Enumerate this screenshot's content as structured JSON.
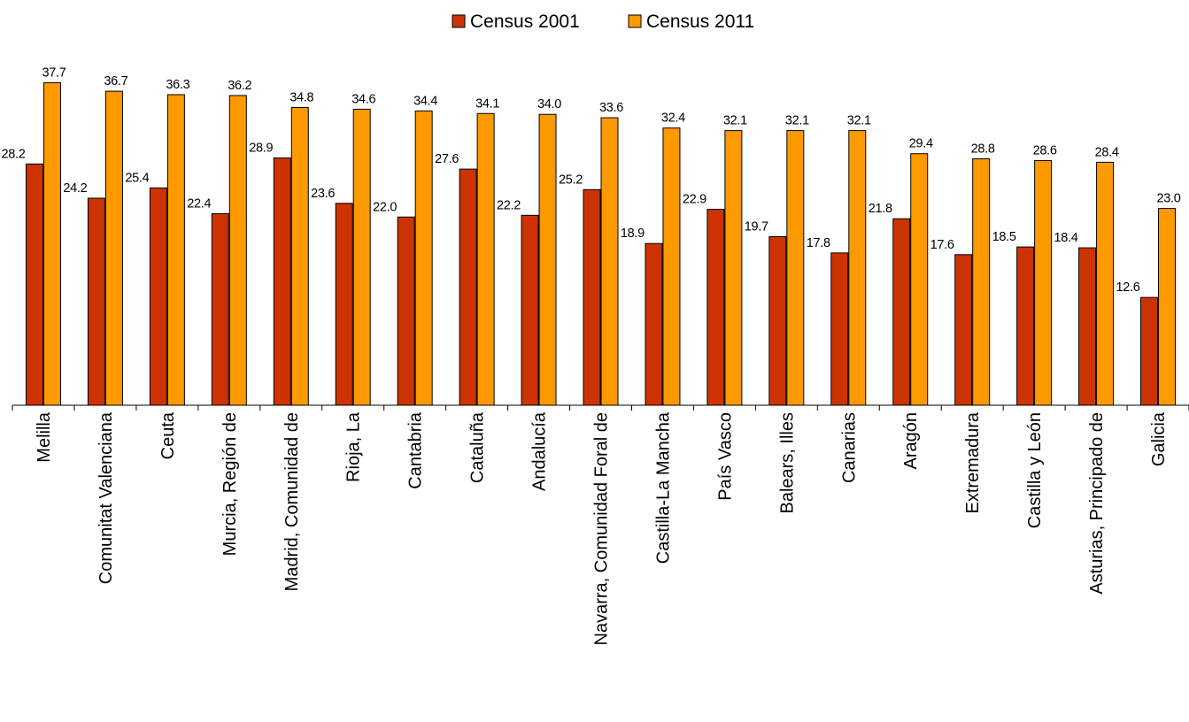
{
  "chart_data": {
    "type": "bar",
    "title": "",
    "xlabel": "",
    "ylabel": "",
    "ylim": [
      0,
      40
    ],
    "grid": false,
    "legend_placement": "top-center",
    "categories": [
      "Melilla",
      "Comunitat Valenciana",
      "Ceuta",
      "Murcia,  Región de",
      "Madrid, Comunidad de",
      "Rioja, La",
      "Cantabria",
      "Cataluña",
      "Andalucía",
      "Navarra, Comunidad Foral de",
      "Castilla-La Mancha",
      "País Vasco",
      "Balears,  Illes",
      "Canarias",
      "Aragón",
      "Extremadura",
      "Castilla y León",
      "Asturias,  Principado de",
      "Galicia"
    ],
    "series": [
      {
        "name": "Census 2001",
        "color": "#CC3300",
        "values": [
          28.2,
          24.2,
          25.4,
          22.4,
          28.9,
          23.6,
          22.0,
          27.6,
          22.2,
          25.2,
          18.9,
          22.9,
          19.7,
          17.8,
          21.8,
          17.6,
          18.5,
          18.4,
          12.6
        ],
        "labels": [
          "28.2",
          "24.2",
          "25.4",
          "22.4",
          "28.9",
          "23.6",
          "22.0",
          "27.6",
          "22.2",
          "25.2",
          "18.9",
          "22.9",
          "19.7",
          "17.8",
          "21.8",
          "17.6",
          "18.5",
          "18.4",
          "12.6"
        ]
      },
      {
        "name": "Census 2011",
        "color": "#FF9900",
        "values": [
          37.7,
          36.7,
          36.3,
          36.2,
          34.8,
          34.6,
          34.4,
          34.1,
          34.0,
          33.6,
          32.4,
          32.1,
          32.1,
          32.1,
          29.4,
          28.8,
          28.6,
          28.4,
          23.0
        ],
        "labels": [
          "37.7",
          "36.7",
          "36.3",
          "36.2",
          "34.8",
          "34.6",
          "34.4",
          "34.1",
          "34.0",
          "33.6",
          "32.4",
          "32.1",
          "32.1",
          "32.1",
          "29.4",
          "28.8",
          "28.6",
          "28.4",
          "23.0"
        ]
      }
    ]
  }
}
